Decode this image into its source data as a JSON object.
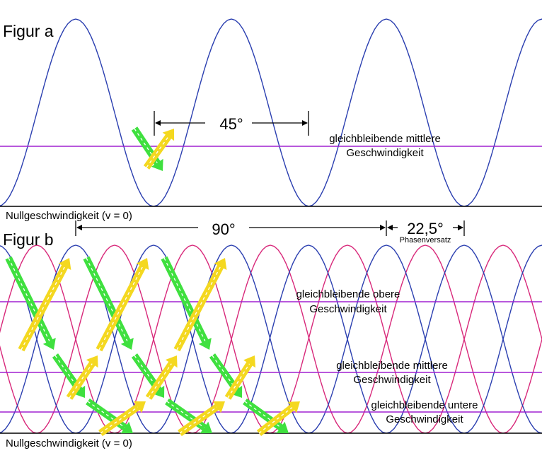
{
  "figure_a": {
    "title": "Figur a",
    "zero_label": "Nullgeschwindigkeit (v = 0)",
    "angle_label": "45°",
    "mean_speed_label_1": "gleichbleibende mittlere",
    "mean_speed_label_2": "Geschwindigkeit"
  },
  "figure_b": {
    "title": "Figur b",
    "zero_label": "Nullgeschwindigkeit (v = 0)",
    "angle_label": "90°",
    "offset_label": "22,5°",
    "offset_caption": "Phasenversatz",
    "upper_speed_label_1": "gleichbleibende obere",
    "upper_speed_label_2": "Geschwindigkeit",
    "mean_speed_label_1": "gleichbleibende mittlere",
    "mean_speed_label_2": "Geschwindigkeit",
    "lower_speed_label_1": "gleichbleibende untere",
    "lower_speed_label_2": "Geschwindigkeit"
  },
  "colors": {
    "wave_primary": "#2b3fb0",
    "wave_secondary": "#d8287a",
    "speed_line": "#a020d0",
    "arrow_down": "#3fe03f",
    "arrow_up": "#f4d820",
    "axis": "#000000"
  }
}
